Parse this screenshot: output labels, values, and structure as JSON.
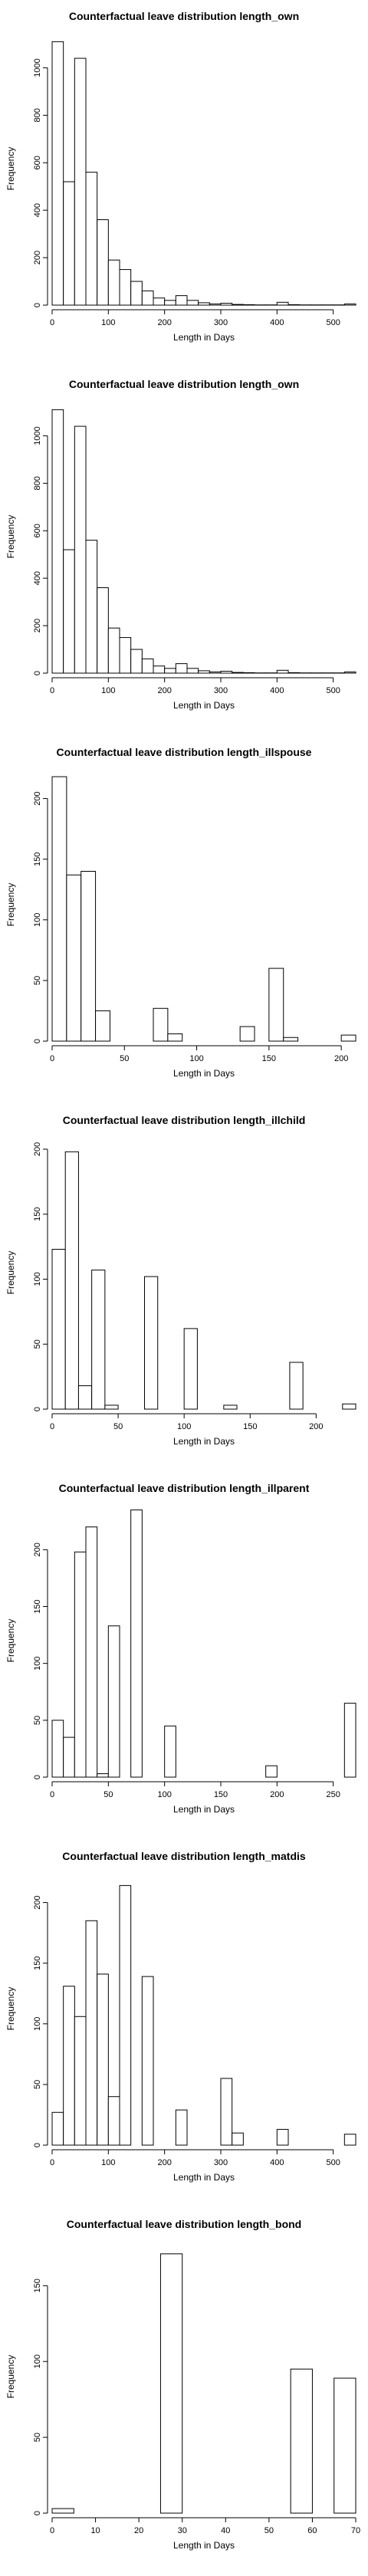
{
  "colors": {
    "background": "#ffffff",
    "bar_fill": "#ffffff",
    "bar_stroke": "#000000",
    "text": "#000000"
  },
  "chart_data": [
    {
      "type": "histogram",
      "title": "Counterfactual leave distribution length_own",
      "xlabel": "Length in Days",
      "ylabel": "Frequency",
      "xlim": [
        0,
        540
      ],
      "ylim": [
        0,
        1150
      ],
      "xticks": [
        0,
        100,
        200,
        300,
        400,
        500
      ],
      "yticks": [
        0,
        200,
        400,
        600,
        800,
        1000
      ],
      "bin_width": 20,
      "bins": [
        [
          0,
          1110
        ],
        [
          20,
          520
        ],
        [
          40,
          1040
        ],
        [
          60,
          560
        ],
        [
          80,
          360
        ],
        [
          100,
          190
        ],
        [
          120,
          150
        ],
        [
          140,
          100
        ],
        [
          160,
          60
        ],
        [
          180,
          30
        ],
        [
          200,
          20
        ],
        [
          220,
          40
        ],
        [
          240,
          20
        ],
        [
          260,
          10
        ],
        [
          280,
          5
        ],
        [
          300,
          8
        ],
        [
          320,
          3
        ],
        [
          340,
          2
        ],
        [
          360,
          1
        ],
        [
          380,
          1
        ],
        [
          400,
          12
        ],
        [
          420,
          2
        ],
        [
          440,
          1
        ],
        [
          460,
          1
        ],
        [
          480,
          1
        ],
        [
          500,
          1
        ],
        [
          520,
          5
        ]
      ]
    },
    {
      "type": "histogram",
      "title": "Counterfactual leave distribution length_own",
      "xlabel": "Length in Days",
      "ylabel": "Frequency",
      "xlim": [
        0,
        540
      ],
      "ylim": [
        0,
        1150
      ],
      "xticks": [
        0,
        100,
        200,
        300,
        400,
        500
      ],
      "yticks": [
        0,
        200,
        400,
        600,
        800,
        1000
      ],
      "bin_width": 20,
      "bins": [
        [
          0,
          1110
        ],
        [
          20,
          520
        ],
        [
          40,
          1040
        ],
        [
          60,
          560
        ],
        [
          80,
          360
        ],
        [
          100,
          190
        ],
        [
          120,
          150
        ],
        [
          140,
          100
        ],
        [
          160,
          60
        ],
        [
          180,
          30
        ],
        [
          200,
          20
        ],
        [
          220,
          40
        ],
        [
          240,
          20
        ],
        [
          260,
          10
        ],
        [
          280,
          5
        ],
        [
          300,
          8
        ],
        [
          320,
          3
        ],
        [
          340,
          2
        ],
        [
          360,
          1
        ],
        [
          380,
          1
        ],
        [
          400,
          12
        ],
        [
          420,
          2
        ],
        [
          440,
          1
        ],
        [
          460,
          1
        ],
        [
          480,
          1
        ],
        [
          500,
          1
        ],
        [
          520,
          5
        ]
      ]
    },
    {
      "type": "histogram",
      "title": "Counterfactual leave distribution length_illspouse",
      "xlabel": "Length in Days",
      "ylabel": "Frequency",
      "xlim": [
        0,
        210
      ],
      "ylim": [
        0,
        225
      ],
      "xticks": [
        0,
        50,
        100,
        150,
        200
      ],
      "yticks": [
        0,
        50,
        100,
        150,
        200
      ],
      "bin_width": 10,
      "bins": [
        [
          0,
          218
        ],
        [
          10,
          137
        ],
        [
          20,
          140
        ],
        [
          30,
          25
        ],
        [
          40,
          0
        ],
        [
          50,
          0
        ],
        [
          60,
          0
        ],
        [
          70,
          27
        ],
        [
          80,
          6
        ],
        [
          90,
          0
        ],
        [
          100,
          0
        ],
        [
          110,
          0
        ],
        [
          120,
          0
        ],
        [
          130,
          12
        ],
        [
          140,
          0
        ],
        [
          150,
          60
        ],
        [
          160,
          3
        ],
        [
          170,
          0
        ],
        [
          180,
          0
        ],
        [
          190,
          0
        ],
        [
          200,
          5
        ]
      ]
    },
    {
      "type": "histogram",
      "title": "Counterfactual leave distribution length_illchild",
      "xlabel": "Length in Days",
      "ylabel": "Frequency",
      "xlim": [
        0,
        230
      ],
      "ylim": [
        0,
        210
      ],
      "xticks": [
        0,
        50,
        100,
        150,
        200
      ],
      "yticks": [
        0,
        50,
        100,
        150,
        200
      ],
      "bin_width": 10,
      "bins": [
        [
          0,
          123
        ],
        [
          10,
          198
        ],
        [
          20,
          18
        ],
        [
          30,
          107
        ],
        [
          40,
          3
        ],
        [
          50,
          0
        ],
        [
          60,
          0
        ],
        [
          70,
          102
        ],
        [
          80,
          0
        ],
        [
          90,
          0
        ],
        [
          100,
          62
        ],
        [
          110,
          0
        ],
        [
          120,
          0
        ],
        [
          130,
          3
        ],
        [
          140,
          0
        ],
        [
          150,
          0
        ],
        [
          160,
          0
        ],
        [
          170,
          0
        ],
        [
          180,
          36
        ],
        [
          190,
          0
        ],
        [
          200,
          0
        ],
        [
          210,
          0
        ],
        [
          220,
          4
        ]
      ]
    },
    {
      "type": "histogram",
      "title": "Counterfactual leave distribution length_illparent",
      "xlabel": "Length in Days",
      "ylabel": "Frequency",
      "xlim": [
        0,
        270
      ],
      "ylim": [
        0,
        240
      ],
      "xticks": [
        0,
        50,
        100,
        150,
        200,
        250
      ],
      "yticks": [
        0,
        50,
        100,
        150,
        200
      ],
      "bin_width": 10,
      "bins": [
        [
          0,
          50
        ],
        [
          10,
          35
        ],
        [
          20,
          198
        ],
        [
          30,
          220
        ],
        [
          40,
          3
        ],
        [
          50,
          133
        ],
        [
          60,
          0
        ],
        [
          70,
          235
        ],
        [
          80,
          0
        ],
        [
          90,
          0
        ],
        [
          100,
          45
        ],
        [
          110,
          0
        ],
        [
          120,
          0
        ],
        [
          130,
          0
        ],
        [
          140,
          0
        ],
        [
          150,
          0
        ],
        [
          160,
          0
        ],
        [
          170,
          0
        ],
        [
          180,
          0
        ],
        [
          190,
          10
        ],
        [
          200,
          0
        ],
        [
          210,
          0
        ],
        [
          220,
          0
        ],
        [
          230,
          0
        ],
        [
          240,
          0
        ],
        [
          250,
          0
        ],
        [
          260,
          65
        ]
      ]
    },
    {
      "type": "histogram",
      "title": "Counterfactual leave distribution length_matdis",
      "xlabel": "Length in Days",
      "ylabel": "Frequency",
      "xlim": [
        0,
        540
      ],
      "ylim": [
        0,
        225
      ],
      "xticks": [
        0,
        100,
        200,
        300,
        400,
        500
      ],
      "yticks": [
        0,
        50,
        100,
        150,
        200
      ],
      "bin_width": 20,
      "bins": [
        [
          0,
          27
        ],
        [
          20,
          131
        ],
        [
          40,
          106
        ],
        [
          60,
          185
        ],
        [
          80,
          141
        ],
        [
          100,
          40
        ],
        [
          120,
          214
        ],
        [
          140,
          0
        ],
        [
          160,
          139
        ],
        [
          180,
          0
        ],
        [
          200,
          0
        ],
        [
          220,
          29
        ],
        [
          240,
          0
        ],
        [
          260,
          0
        ],
        [
          280,
          0
        ],
        [
          300,
          55
        ],
        [
          320,
          10
        ],
        [
          340,
          0
        ],
        [
          360,
          0
        ],
        [
          380,
          0
        ],
        [
          400,
          13
        ],
        [
          420,
          0
        ],
        [
          440,
          0
        ],
        [
          460,
          0
        ],
        [
          480,
          0
        ],
        [
          500,
          0
        ],
        [
          520,
          9
        ]
      ]
    },
    {
      "type": "histogram",
      "title": "Counterfactual leave distribution length_bond",
      "xlabel": "Length in Days",
      "ylabel": "Frequency",
      "xlim": [
        0,
        70
      ],
      "ylim": [
        0,
        180
      ],
      "xticks": [
        0,
        10,
        20,
        30,
        40,
        50,
        60,
        70
      ],
      "yticks": [
        0,
        50,
        100,
        150
      ],
      "bin_width": 5,
      "bins": [
        [
          0,
          3
        ],
        [
          5,
          0
        ],
        [
          10,
          0
        ],
        [
          15,
          0
        ],
        [
          20,
          0
        ],
        [
          25,
          171
        ],
        [
          30,
          0
        ],
        [
          35,
          0
        ],
        [
          40,
          0
        ],
        [
          45,
          0
        ],
        [
          50,
          0
        ],
        [
          55,
          95
        ],
        [
          60,
          0
        ],
        [
          65,
          89
        ]
      ]
    }
  ]
}
